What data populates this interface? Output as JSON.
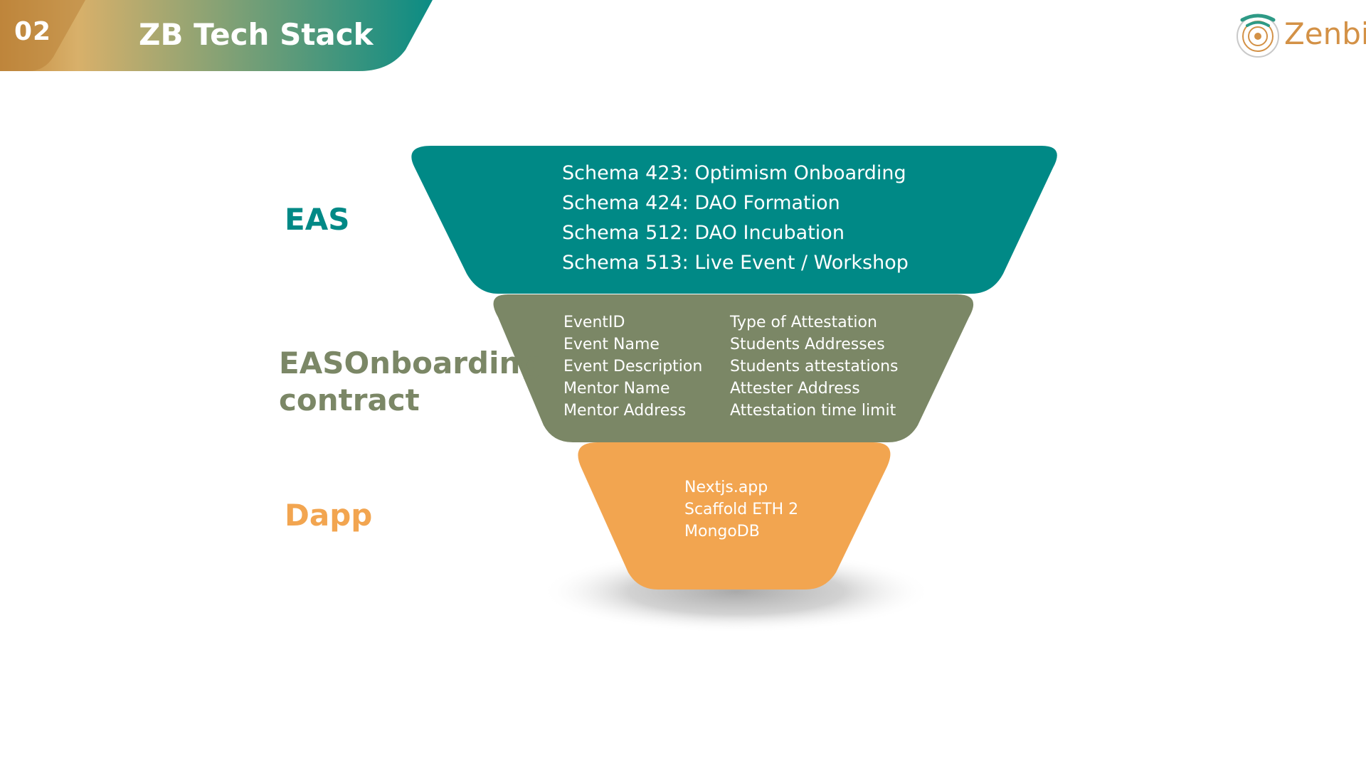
{
  "header": {
    "number": "02",
    "title": "ZB Tech Stack",
    "gradient_start": "#c48a3e",
    "gradient_mid": "#d8b06a",
    "gradient_end": "#0b8c84"
  },
  "logo": {
    "text": "Zenbit",
    "icon": "zenbit-logo-icon",
    "text_color": "#d39146",
    "accent_color": "#2e9a86"
  },
  "layers": {
    "eas": {
      "label": "EAS",
      "color": "#008986",
      "items": [
        "Schema 423: Optimism Onboarding",
        "Schema 424: DAO Formation",
        "Schema 512: DAO Incubation",
        "Schema 513: Live Event / Workshop"
      ]
    },
    "contract": {
      "label_line1": "EASOnboarding",
      "label_line2": "contract",
      "color": "#7b8766",
      "items_left": [
        "EventID",
        "Event Name",
        "Event Description",
        "Mentor Name",
        "Mentor Address"
      ],
      "items_right": [
        "Type of Attestation",
        "Students Addresses",
        "Students attestations",
        "Attester Address",
        "Attestation time limit"
      ]
    },
    "dapp": {
      "label": "Dapp",
      "color": "#f2a550",
      "items": [
        "Nextjs.app",
        "Scaffold ETH 2",
        "MongoDB"
      ]
    }
  }
}
